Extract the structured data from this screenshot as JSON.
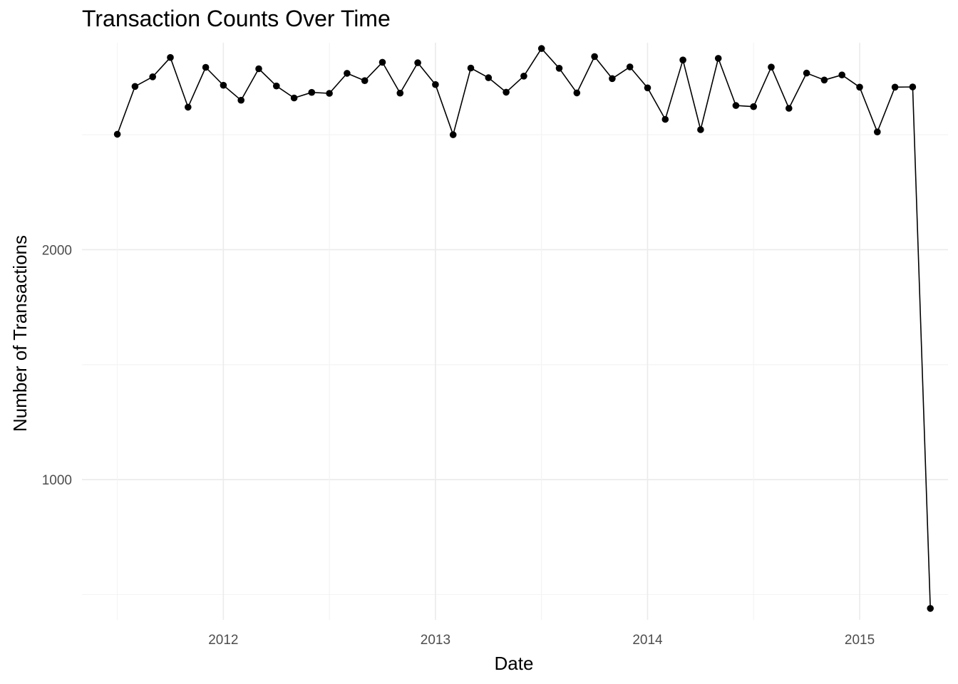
{
  "chart_data": {
    "type": "line",
    "title": "Transaction Counts Over Time",
    "xlabel": "Date",
    "ylabel": "Number of Transactions",
    "x_ticks": [
      "2012",
      "2013",
      "2014",
      "2015"
    ],
    "y_ticks": [
      1000,
      2000
    ],
    "grid": true,
    "xlim": [
      "2011-05-01",
      "2015-06-01"
    ],
    "ylim": [
      390,
      2900
    ],
    "x": [
      "2011-07",
      "2011-08",
      "2011-09",
      "2011-10",
      "2011-11",
      "2011-12",
      "2012-01",
      "2012-02",
      "2012-03",
      "2012-04",
      "2012-05",
      "2012-06",
      "2012-07",
      "2012-08",
      "2012-09",
      "2012-10",
      "2012-11",
      "2012-12",
      "2013-01",
      "2013-02",
      "2013-03",
      "2013-04",
      "2013-05",
      "2013-06",
      "2013-07",
      "2013-08",
      "2013-09",
      "2013-10",
      "2013-11",
      "2013-12",
      "2014-01",
      "2014-02",
      "2014-03",
      "2014-04",
      "2014-05",
      "2014-06",
      "2014-07",
      "2014-08",
      "2014-09",
      "2014-10",
      "2014-11",
      "2014-12",
      "2015-01",
      "2015-02",
      "2015-03",
      "2015-04",
      "2015-05"
    ],
    "y": [
      2502,
      2710,
      2752,
      2836,
      2620,
      2793,
      2715,
      2650,
      2787,
      2712,
      2660,
      2684,
      2680,
      2767,
      2735,
      2815,
      2681,
      2813,
      2718,
      2500,
      2790,
      2748,
      2685,
      2755,
      2875,
      2789,
      2682,
      2840,
      2744,
      2795,
      2704,
      2567,
      2825,
      2522,
      2832,
      2627,
      2622,
      2794,
      2615,
      2768,
      2738,
      2760,
      2707,
      2512,
      2707,
      2708,
      440
    ]
  }
}
